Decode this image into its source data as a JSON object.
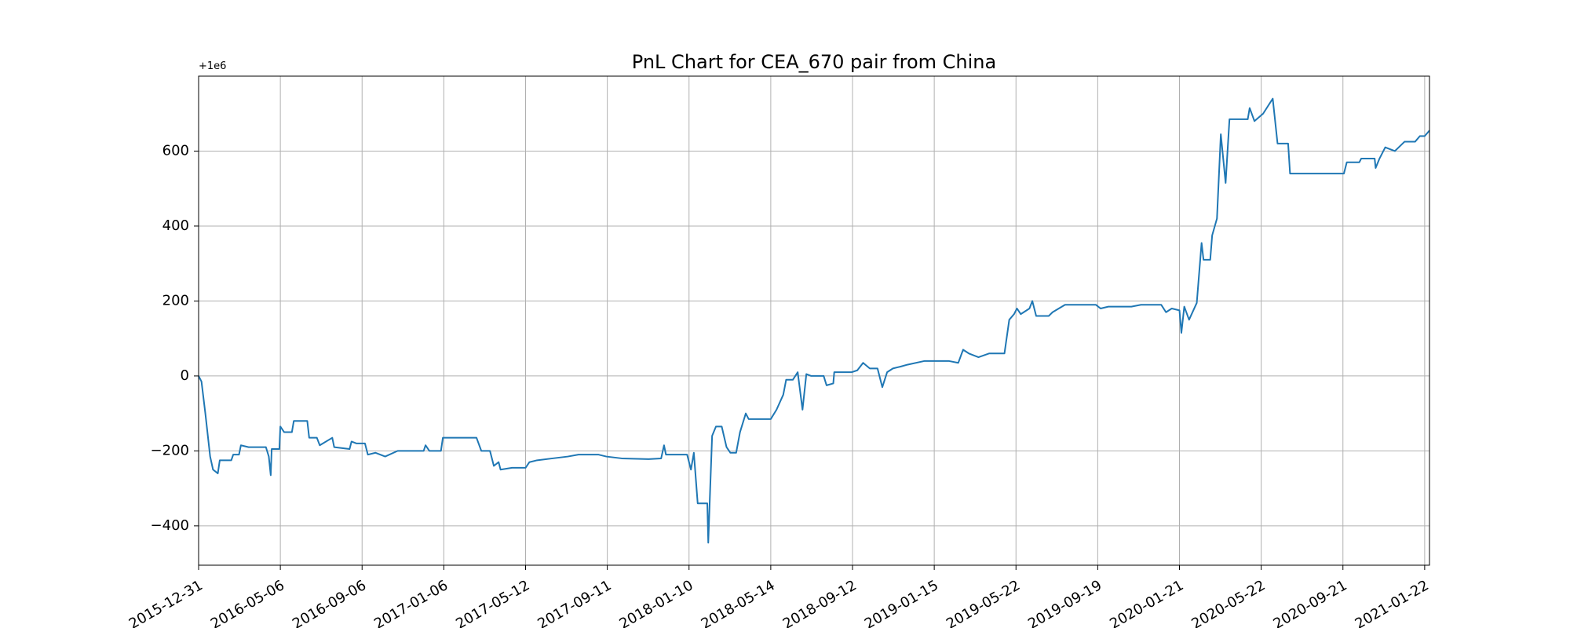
{
  "chart_data": {
    "type": "line",
    "title": "PnL Chart for CEA_670 pair from China",
    "offset_label": "+1e6",
    "grid": true,
    "series": [
      {
        "color": "#1f77b4",
        "x": [
          0,
          3,
          7,
          12,
          15,
          20,
          22,
          34,
          36,
          42,
          44,
          52,
          70,
          73,
          75,
          76,
          84,
          85,
          89,
          97,
          99,
          113,
          115,
          123,
          126,
          139,
          141,
          157,
          159,
          164,
          173,
          176,
          184,
          194,
          207,
          220,
          234,
          236,
          240,
          252,
          254,
          289,
          294,
          303,
          307,
          312,
          314,
          326,
          340,
          344,
          352,
          368,
          384,
          395,
          416,
          424,
          440,
          468,
          481,
          484,
          486,
          508,
          512,
          515,
          519,
          529,
          530,
          532,
          534,
          538,
          544,
          549,
          553,
          559,
          563,
          569,
          572,
          579,
          595,
          601,
          608,
          611,
          618,
          623,
          628,
          632,
          637,
          650,
          653,
          660,
          661,
          679,
          685,
          691,
          698,
          706,
          711,
          716,
          722,
          730,
          737,
          755,
          780,
          790,
          795,
          801,
          811,
          822,
          834,
          838,
          843,
          848,
          851,
          855,
          864,
          867,
          871,
          884,
          888,
          901,
          933,
          938,
          946,
          970,
          980,
          1001,
          1006,
          1012,
          1020,
          1022,
          1025,
          1030,
          1038,
          1043,
          1045,
          1052,
          1054,
          1059,
          1063,
          1068,
          1072,
          1091,
          1093,
          1098,
          1107,
          1117,
          1122,
          1133,
          1135,
          1165,
          1191,
          1194,
          1207,
          1209,
          1223,
          1224,
          1228,
          1234,
          1244,
          1254,
          1265,
          1270,
          1275,
          1280
        ],
        "values": [
          0,
          -15,
          -100,
          -215,
          -250,
          -260,
          -225,
          -225,
          -210,
          -210,
          -185,
          -190,
          -190,
          -215,
          -265,
          -195,
          -195,
          -135,
          -150,
          -150,
          -120,
          -120,
          -165,
          -165,
          -185,
          -165,
          -190,
          -195,
          -175,
          -180,
          -180,
          -210,
          -205,
          -215,
          -200,
          -200,
          -200,
          -185,
          -200,
          -200,
          -165,
          -165,
          -200,
          -200,
          -240,
          -230,
          -250,
          -245,
          -245,
          -230,
          -225,
          -220,
          -215,
          -210,
          -210,
          -215,
          -220,
          -222,
          -220,
          -185,
          -210,
          -210,
          -250,
          -205,
          -340,
          -340,
          -445,
          -300,
          -160,
          -135,
          -135,
          -190,
          -205,
          -205,
          -150,
          -100,
          -115,
          -115,
          -115,
          -90,
          -50,
          -10,
          -10,
          10,
          -90,
          5,
          0,
          0,
          -25,
          -20,
          10,
          10,
          15,
          35,
          20,
          20,
          -30,
          10,
          20,
          25,
          30,
          40,
          40,
          35,
          70,
          60,
          50,
          60,
          60,
          60,
          150,
          165,
          180,
          165,
          180,
          200,
          160,
          160,
          170,
          190,
          190,
          180,
          185,
          185,
          190,
          190,
          170,
          180,
          175,
          115,
          185,
          150,
          195,
          355,
          310,
          310,
          375,
          420,
          645,
          515,
          685,
          685,
          715,
          680,
          700,
          740,
          620,
          620,
          540,
          540,
          540,
          570,
          570,
          580,
          580,
          555,
          580,
          610,
          600,
          625,
          625,
          640,
          640,
          655
        ]
      }
    ],
    "xlim": [
      0,
      1280
    ],
    "xticks": [
      {
        "value": 0,
        "label": "2015-12-31"
      },
      {
        "value": 85,
        "label": "2016-05-06"
      },
      {
        "value": 170,
        "label": "2016-09-06"
      },
      {
        "value": 255,
        "label": "2017-01-06"
      },
      {
        "value": 340,
        "label": "2017-05-12"
      },
      {
        "value": 425,
        "label": "2017-09-11"
      },
      {
        "value": 510,
        "label": "2018-01-10"
      },
      {
        "value": 595,
        "label": "2018-05-14"
      },
      {
        "value": 680,
        "label": "2018-09-12"
      },
      {
        "value": 765,
        "label": "2019-01-15"
      },
      {
        "value": 850,
        "label": "2019-05-22"
      },
      {
        "value": 935,
        "label": "2019-09-19"
      },
      {
        "value": 1020,
        "label": "2020-01-21"
      },
      {
        "value": 1105,
        "label": "2020-05-22"
      },
      {
        "value": 1190,
        "label": "2020-09-21"
      },
      {
        "value": 1275,
        "label": "2021-01-22"
      }
    ],
    "ylim": [
      -505,
      800
    ],
    "yticks": [
      {
        "value": -400,
        "label": "−400"
      },
      {
        "value": -200,
        "label": "−200"
      },
      0,
      200,
      400,
      600
    ]
  }
}
